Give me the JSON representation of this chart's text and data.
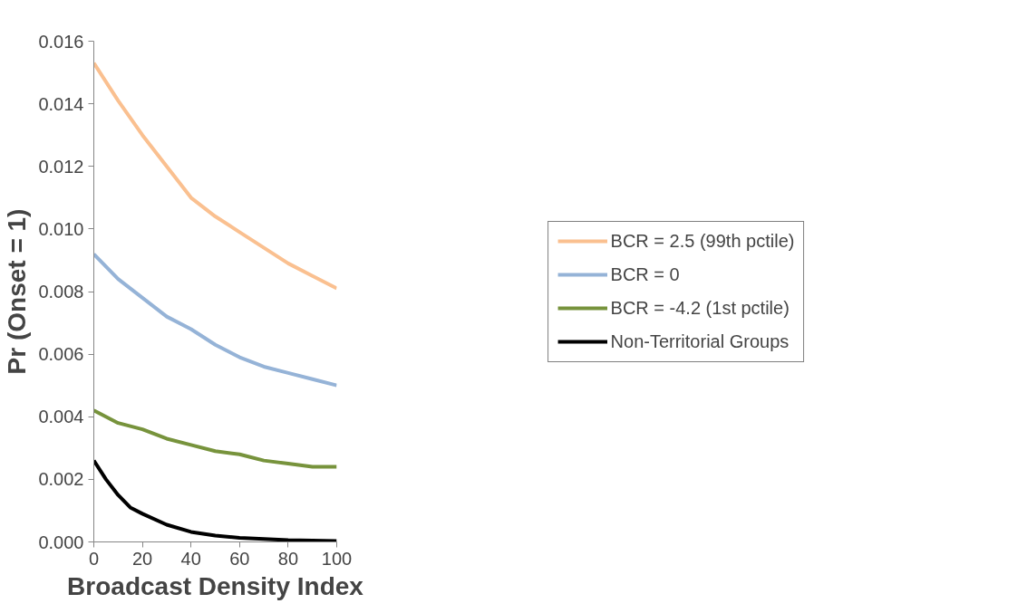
{
  "chart_data": {
    "type": "line",
    "xlabel": "Broadcast Density Index",
    "ylabel": "Pr (Onset = 1)",
    "xlim": [
      0,
      100
    ],
    "xticks": [
      0,
      20,
      40,
      60,
      80,
      100
    ],
    "ylim": [
      0,
      0.016
    ],
    "yticks": [
      {
        "value": 0,
        "label": "0.000"
      },
      {
        "value": 0.002,
        "label": "0.002"
      },
      {
        "value": 0.004,
        "label": "0.004"
      },
      {
        "value": 0.006,
        "label": "0.006"
      },
      {
        "value": 0.008,
        "label": "0.008"
      },
      {
        "value": 0.01,
        "label": "0.010"
      },
      {
        "value": 0.012,
        "label": "0.012"
      },
      {
        "value": 0.014,
        "label": "0.014"
      },
      {
        "value": 0.016,
        "label": "0.016"
      }
    ],
    "grid": false,
    "legend": "right",
    "marker": "none",
    "line_style": "solid",
    "series": [
      {
        "name": "BCR = 2.5 (99th pctile)",
        "color": "#fac090",
        "x": [
          0,
          10,
          20,
          30,
          40,
          50,
          60,
          70,
          80,
          90,
          100
        ],
        "values": [
          0.0153,
          0.0141,
          0.013,
          0.012,
          0.011,
          0.0104,
          0.0099,
          0.0094,
          0.0089,
          0.0085,
          0.0081
        ]
      },
      {
        "name": "BCR = 0",
        "color": "#95b3d7",
        "x": [
          0,
          10,
          20,
          30,
          40,
          50,
          60,
          70,
          80,
          90,
          100
        ],
        "values": [
          0.0092,
          0.0084,
          0.0078,
          0.0072,
          0.0068,
          0.0063,
          0.0059,
          0.0056,
          0.0054,
          0.0052,
          0.005
        ]
      },
      {
        "name": "BCR = -4.2 (1st pctile)",
        "color": "#77933c",
        "x": [
          0,
          10,
          20,
          30,
          40,
          50,
          60,
          70,
          80,
          90,
          100
        ],
        "values": [
          0.0042,
          0.0038,
          0.0036,
          0.0033,
          0.0031,
          0.0029,
          0.0028,
          0.0026,
          0.0025,
          0.0024,
          0.0024
        ]
      },
      {
        "name": "Non-Territorial Groups",
        "color": "#000000",
        "x": [
          0,
          5,
          10,
          15,
          20,
          30,
          40,
          50,
          60,
          80,
          100
        ],
        "values": [
          0.0026,
          0.002,
          0.0015,
          0.0011,
          0.0009,
          0.00055,
          0.00032,
          0.0002,
          0.00013,
          6e-05,
          3e-05
        ]
      }
    ]
  }
}
